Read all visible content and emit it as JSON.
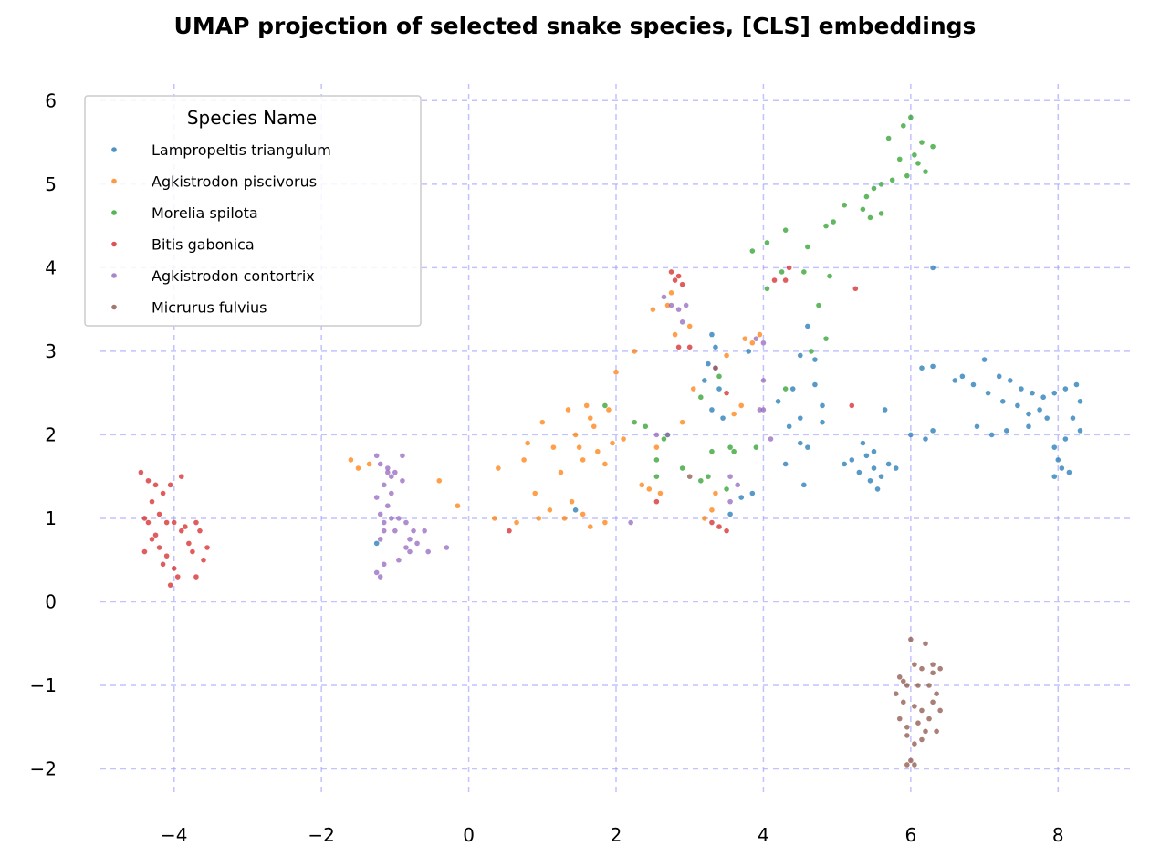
{
  "chart_data": {
    "type": "scatter",
    "title": "UMAP projection of selected snake species, [CLS] embeddings",
    "xlabel": "",
    "ylabel": "",
    "xlim": [
      -5,
      9
    ],
    "ylim": [
      -2.3,
      6.2
    ],
    "xticks": [
      -4,
      -2,
      0,
      2,
      4,
      6,
      8
    ],
    "yticks": [
      -2,
      -1,
      0,
      1,
      2,
      3,
      4,
      5,
      6
    ],
    "grid": true,
    "grid_color": "#9999ff",
    "legend": {
      "title": "Species Name",
      "placement": "top-left"
    },
    "series": [
      {
        "name": "Lampropeltis triangulum",
        "color": "#1f77b4",
        "points": [
          [
            7.0,
            2.9
          ],
          [
            7.2,
            2.7
          ],
          [
            7.35,
            2.65
          ],
          [
            7.5,
            2.55
          ],
          [
            7.65,
            2.5
          ],
          [
            7.8,
            2.45
          ],
          [
            7.95,
            2.5
          ],
          [
            8.1,
            2.55
          ],
          [
            8.25,
            2.6
          ],
          [
            8.3,
            2.4
          ],
          [
            8.2,
            2.2
          ],
          [
            8.3,
            2.05
          ],
          [
            8.1,
            1.95
          ],
          [
            7.95,
            1.85
          ],
          [
            8.0,
            1.7
          ],
          [
            8.05,
            1.6
          ],
          [
            8.15,
            1.55
          ],
          [
            7.95,
            1.5
          ],
          [
            6.7,
            2.7
          ],
          [
            6.85,
            2.6
          ],
          [
            7.05,
            2.5
          ],
          [
            7.25,
            2.4
          ],
          [
            7.45,
            2.35
          ],
          [
            7.6,
            2.25
          ],
          [
            7.75,
            2.3
          ],
          [
            7.85,
            2.2
          ],
          [
            7.6,
            2.1
          ],
          [
            7.3,
            2.05
          ],
          [
            7.1,
            2.0
          ],
          [
            6.9,
            2.1
          ],
          [
            6.6,
            2.65
          ],
          [
            5.4,
            1.75
          ],
          [
            5.5,
            1.6
          ],
          [
            5.3,
            1.55
          ],
          [
            5.45,
            1.45
          ],
          [
            5.6,
            1.5
          ],
          [
            5.55,
            1.35
          ],
          [
            5.7,
            1.65
          ],
          [
            5.8,
            1.6
          ],
          [
            5.2,
            1.7
          ],
          [
            5.1,
            1.65
          ],
          [
            5.35,
            1.9
          ],
          [
            5.5,
            1.8
          ],
          [
            5.65,
            2.3
          ],
          [
            6.15,
            2.8
          ],
          [
            6.3,
            2.82
          ],
          [
            6.0,
            2.0
          ],
          [
            6.2,
            1.95
          ],
          [
            6.3,
            2.05
          ],
          [
            6.3,
            4.0
          ],
          [
            4.5,
            2.95
          ],
          [
            4.6,
            3.3
          ],
          [
            4.4,
            2.55
          ],
          [
            4.7,
            2.6
          ],
          [
            4.5,
            2.2
          ],
          [
            4.2,
            2.4
          ],
          [
            4.8,
            2.35
          ],
          [
            4.8,
            2.15
          ],
          [
            4.35,
            2.1
          ],
          [
            4.5,
            1.9
          ],
          [
            4.6,
            1.85
          ],
          [
            4.3,
            1.65
          ],
          [
            4.7,
            2.9
          ],
          [
            4.55,
            1.4
          ],
          [
            3.3,
            3.2
          ],
          [
            3.35,
            3.05
          ],
          [
            3.25,
            2.85
          ],
          [
            3.2,
            2.65
          ],
          [
            3.4,
            2.55
          ],
          [
            3.3,
            2.3
          ],
          [
            3.45,
            2.2
          ],
          [
            3.8,
            3.0
          ],
          [
            3.7,
            1.25
          ],
          [
            3.85,
            1.3
          ],
          [
            3.55,
            1.05
          ],
          [
            1.45,
            1.1
          ],
          [
            -1.25,
            0.7
          ]
        ]
      },
      {
        "name": "Agkistrodon piscivorus",
        "color": "#ff7f0e",
        "points": [
          [
            -1.6,
            1.7
          ],
          [
            -1.5,
            1.6
          ],
          [
            -1.35,
            1.65
          ],
          [
            -0.4,
            1.45
          ],
          [
            -0.15,
            1.15
          ],
          [
            0.4,
            1.6
          ],
          [
            0.35,
            1.0
          ],
          [
            0.65,
            0.95
          ],
          [
            0.9,
            1.3
          ],
          [
            0.95,
            1.0
          ],
          [
            1.0,
            2.15
          ],
          [
            1.15,
            1.85
          ],
          [
            1.25,
            1.55
          ],
          [
            1.3,
            1.0
          ],
          [
            1.35,
            2.3
          ],
          [
            1.45,
            2.0
          ],
          [
            1.5,
            1.85
          ],
          [
            1.55,
            1.7
          ],
          [
            1.6,
            2.35
          ],
          [
            1.65,
            2.2
          ],
          [
            1.7,
            2.1
          ],
          [
            1.75,
            1.8
          ],
          [
            1.85,
            1.65
          ],
          [
            1.9,
            2.3
          ],
          [
            1.95,
            1.9
          ],
          [
            2.0,
            2.75
          ],
          [
            2.1,
            1.95
          ],
          [
            2.25,
            3.0
          ],
          [
            2.35,
            1.4
          ],
          [
            2.45,
            1.35
          ],
          [
            2.5,
            3.5
          ],
          [
            2.55,
            1.85
          ],
          [
            2.6,
            1.3
          ],
          [
            2.7,
            3.55
          ],
          [
            2.75,
            3.7
          ],
          [
            2.8,
            3.2
          ],
          [
            2.9,
            2.15
          ],
          [
            3.0,
            3.3
          ],
          [
            3.05,
            2.55
          ],
          [
            3.2,
            1.0
          ],
          [
            3.3,
            1.1
          ],
          [
            3.35,
            1.3
          ],
          [
            3.5,
            2.95
          ],
          [
            3.6,
            2.25
          ],
          [
            3.7,
            2.35
          ],
          [
            3.75,
            3.15
          ],
          [
            3.85,
            3.1
          ],
          [
            3.95,
            3.2
          ],
          [
            0.8,
            1.9
          ],
          [
            0.75,
            1.7
          ],
          [
            1.55,
            1.05
          ],
          [
            1.65,
            0.9
          ],
          [
            1.85,
            0.95
          ],
          [
            1.1,
            1.1
          ],
          [
            1.4,
            1.2
          ]
        ]
      },
      {
        "name": "Morelia spilota",
        "color": "#2ca02c",
        "points": [
          [
            6.0,
            5.8
          ],
          [
            5.9,
            5.7
          ],
          [
            6.15,
            5.5
          ],
          [
            6.3,
            5.45
          ],
          [
            6.05,
            5.35
          ],
          [
            5.85,
            5.3
          ],
          [
            5.7,
            5.55
          ],
          [
            5.75,
            5.05
          ],
          [
            5.95,
            5.1
          ],
          [
            6.1,
            5.25
          ],
          [
            6.2,
            5.15
          ],
          [
            5.6,
            5.0
          ],
          [
            5.5,
            4.95
          ],
          [
            5.4,
            4.85
          ],
          [
            5.35,
            4.7
          ],
          [
            5.6,
            4.65
          ],
          [
            5.45,
            4.6
          ],
          [
            5.1,
            4.75
          ],
          [
            4.95,
            4.55
          ],
          [
            4.85,
            4.5
          ],
          [
            4.6,
            4.25
          ],
          [
            4.55,
            3.95
          ],
          [
            4.75,
            3.55
          ],
          [
            4.9,
            3.9
          ],
          [
            4.85,
            3.15
          ],
          [
            4.65,
            3.0
          ],
          [
            4.3,
            4.45
          ],
          [
            4.25,
            3.95
          ],
          [
            4.05,
            4.3
          ],
          [
            3.85,
            4.2
          ],
          [
            4.05,
            3.75
          ],
          [
            4.3,
            2.55
          ],
          [
            3.9,
            1.85
          ],
          [
            3.6,
            1.8
          ],
          [
            3.55,
            1.85
          ],
          [
            3.3,
            1.8
          ],
          [
            3.25,
            1.5
          ],
          [
            3.15,
            1.45
          ],
          [
            2.9,
            1.6
          ],
          [
            2.7,
            2.0
          ],
          [
            2.65,
            1.95
          ],
          [
            2.55,
            1.7
          ],
          [
            2.4,
            2.1
          ],
          [
            2.25,
            2.15
          ],
          [
            1.85,
            2.35
          ],
          [
            2.55,
            1.5
          ],
          [
            3.5,
            1.35
          ],
          [
            3.4,
            2.7
          ],
          [
            3.15,
            2.45
          ]
        ]
      },
      {
        "name": "Bitis gabonica",
        "color": "#d62728",
        "points": [
          [
            -4.45,
            1.55
          ],
          [
            -4.35,
            1.45
          ],
          [
            -4.25,
            1.4
          ],
          [
            -4.15,
            1.3
          ],
          [
            -4.05,
            1.4
          ],
          [
            -3.9,
            1.5
          ],
          [
            -4.3,
            1.2
          ],
          [
            -4.2,
            1.05
          ],
          [
            -4.1,
            0.95
          ],
          [
            -4.0,
            0.95
          ],
          [
            -3.85,
            0.9
          ],
          [
            -3.7,
            0.95
          ],
          [
            -3.65,
            0.85
          ],
          [
            -3.55,
            0.65
          ],
          [
            -4.4,
            1.0
          ],
          [
            -4.35,
            0.95
          ],
          [
            -4.3,
            0.75
          ],
          [
            -4.2,
            0.65
          ],
          [
            -4.1,
            0.55
          ],
          [
            -4.0,
            0.4
          ],
          [
            -3.95,
            0.3
          ],
          [
            -3.8,
            0.7
          ],
          [
            -3.75,
            0.6
          ],
          [
            -3.7,
            0.3
          ],
          [
            -3.6,
            0.5
          ],
          [
            -4.05,
            0.2
          ],
          [
            -4.15,
            0.45
          ],
          [
            -3.9,
            0.85
          ],
          [
            -4.25,
            0.8
          ],
          [
            -4.4,
            0.6
          ],
          [
            2.75,
            3.95
          ],
          [
            2.85,
            3.9
          ],
          [
            2.9,
            3.8
          ],
          [
            2.8,
            3.85
          ],
          [
            2.85,
            3.05
          ],
          [
            3.0,
            3.05
          ],
          [
            3.3,
            0.95
          ],
          [
            3.5,
            0.85
          ],
          [
            3.4,
            0.9
          ],
          [
            3.5,
            2.5
          ],
          [
            4.3,
            3.85
          ],
          [
            4.35,
            4.0
          ],
          [
            4.15,
            3.85
          ],
          [
            5.25,
            3.75
          ],
          [
            5.2,
            2.35
          ],
          [
            0.55,
            0.85
          ],
          [
            2.55,
            1.2
          ]
        ]
      },
      {
        "name": "Agkistrodon contortrix",
        "color": "#9467bd",
        "points": [
          [
            -1.25,
            1.75
          ],
          [
            -1.2,
            1.65
          ],
          [
            -1.1,
            1.6
          ],
          [
            -1.0,
            1.55
          ],
          [
            -0.9,
            1.45
          ],
          [
            -1.15,
            1.4
          ],
          [
            -1.05,
            1.3
          ],
          [
            -1.25,
            1.25
          ],
          [
            -1.1,
            1.15
          ],
          [
            -1.2,
            1.05
          ],
          [
            -1.05,
            1.0
          ],
          [
            -0.95,
            1.0
          ],
          [
            -0.85,
            0.95
          ],
          [
            -0.75,
            0.85
          ],
          [
            -0.6,
            0.85
          ],
          [
            -1.15,
            0.95
          ],
          [
            -1.0,
            0.85
          ],
          [
            -1.2,
            0.75
          ],
          [
            -0.8,
            0.75
          ],
          [
            -0.7,
            0.7
          ],
          [
            -0.55,
            0.6
          ],
          [
            -0.8,
            0.6
          ],
          [
            -0.95,
            0.5
          ],
          [
            -1.15,
            0.45
          ],
          [
            -1.25,
            0.35
          ],
          [
            -1.2,
            0.3
          ],
          [
            -0.3,
            0.65
          ],
          [
            -0.85,
            0.65
          ],
          [
            -0.9,
            1.75
          ],
          [
            -1.05,
            1.5
          ],
          [
            2.2,
            0.95
          ],
          [
            2.55,
            2.0
          ],
          [
            2.7,
            2.0
          ],
          [
            2.65,
            3.65
          ],
          [
            2.75,
            3.55
          ],
          [
            2.85,
            3.5
          ],
          [
            2.9,
            3.35
          ],
          [
            2.95,
            3.55
          ],
          [
            3.35,
            2.8
          ],
          [
            3.55,
            1.2
          ],
          [
            3.55,
            1.5
          ],
          [
            3.65,
            1.4
          ],
          [
            3.9,
            3.15
          ],
          [
            4.0,
            3.1
          ],
          [
            4.0,
            2.65
          ],
          [
            3.95,
            2.3
          ],
          [
            4.0,
            2.3
          ],
          [
            4.1,
            1.95
          ],
          [
            -1.1,
            1.55
          ],
          [
            -1.15,
            0.85
          ]
        ]
      },
      {
        "name": "Micrurus fulvius",
        "color": "#8c564b",
        "points": [
          [
            6.0,
            -0.45
          ],
          [
            6.2,
            -0.5
          ],
          [
            6.05,
            -0.75
          ],
          [
            6.15,
            -0.8
          ],
          [
            6.3,
            -0.85
          ],
          [
            6.4,
            -0.8
          ],
          [
            5.85,
            -0.9
          ],
          [
            5.95,
            -1.0
          ],
          [
            6.1,
            -1.0
          ],
          [
            6.25,
            -1.0
          ],
          [
            6.35,
            -1.1
          ],
          [
            5.8,
            -1.1
          ],
          [
            5.9,
            -1.2
          ],
          [
            6.05,
            -1.25
          ],
          [
            6.15,
            -1.3
          ],
          [
            6.3,
            -1.2
          ],
          [
            6.4,
            -1.3
          ],
          [
            5.85,
            -1.4
          ],
          [
            5.95,
            -1.5
          ],
          [
            6.1,
            -1.45
          ],
          [
            6.25,
            -1.4
          ],
          [
            6.35,
            -1.55
          ],
          [
            5.95,
            -1.6
          ],
          [
            6.05,
            -1.7
          ],
          [
            6.15,
            -1.65
          ],
          [
            6.0,
            -1.9
          ],
          [
            5.95,
            -1.95
          ],
          [
            6.05,
            -1.95
          ],
          [
            6.3,
            -0.75
          ],
          [
            5.9,
            -0.95
          ],
          [
            6.2,
            -1.55
          ],
          [
            3.0,
            1.5
          ],
          [
            3.35,
            2.8
          ]
        ]
      }
    ]
  }
}
